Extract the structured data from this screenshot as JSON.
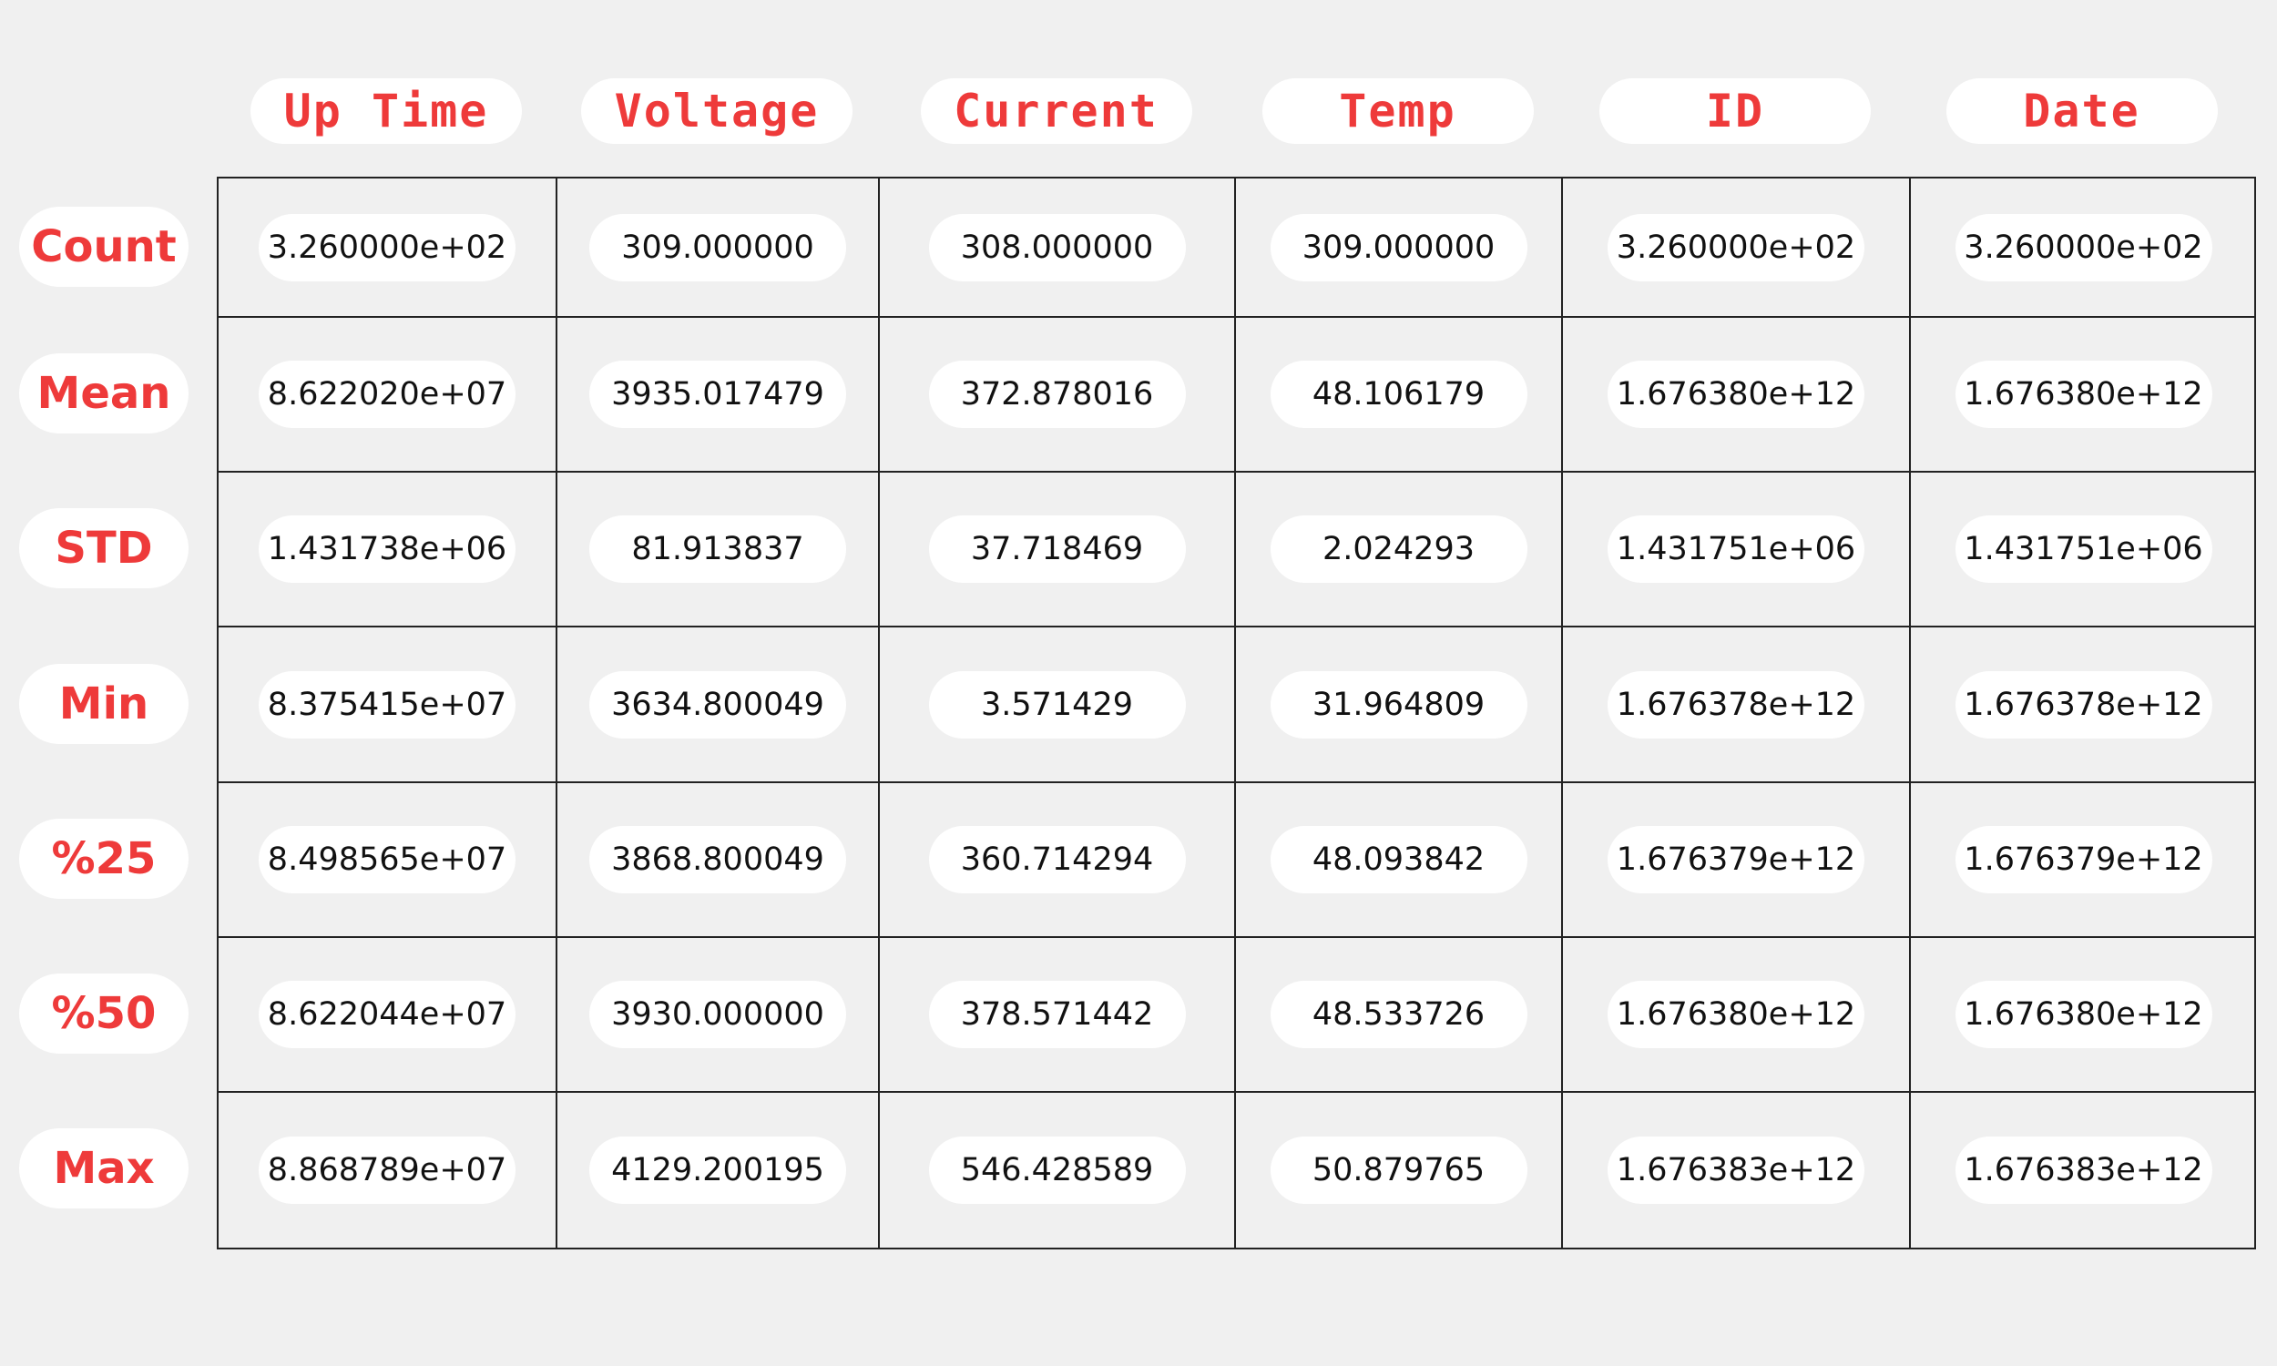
{
  "chart_data": {
    "type": "table",
    "columns": [
      "Up Time",
      "Voltage",
      "Current",
      "Temp",
      "ID",
      "Date"
    ],
    "rows": [
      "Count",
      "Mean",
      "STD",
      "Min",
      "%25",
      "%50",
      "Max"
    ],
    "cells": [
      [
        "3.260000e+02",
        "309.000000",
        "308.000000",
        "309.000000",
        "3.260000e+02",
        "3.260000e+02"
      ],
      [
        "8.622020e+07",
        "3935.017479",
        "372.878016",
        "48.106179",
        "1.676380e+12",
        "1.676380e+12"
      ],
      [
        "1.431738e+06",
        "81.913837",
        "37.718469",
        "2.024293",
        "1.431751e+06",
        "1.431751e+06"
      ],
      [
        "8.375415e+07",
        "3634.800049",
        "3.571429",
        "31.964809",
        "1.676378e+12",
        "1.676378e+12"
      ],
      [
        "8.498565e+07",
        "3868.800049",
        "360.714294",
        "48.093842",
        "1.676379e+12",
        "1.676379e+12"
      ],
      [
        "8.622044e+07",
        "3930.000000",
        "378.571442",
        "48.533726",
        "1.676380e+12",
        "1.676380e+12"
      ],
      [
        "8.868789e+07",
        "4129.200195",
        "546.428589",
        "50.879765",
        "1.676383e+12",
        "1.676383e+12"
      ]
    ]
  },
  "colors": {
    "background": "#f0f0f0",
    "label_red": "#ee3a3a",
    "pill": "#ffffff",
    "grid_line": "#222222",
    "value_text": "#111111"
  }
}
